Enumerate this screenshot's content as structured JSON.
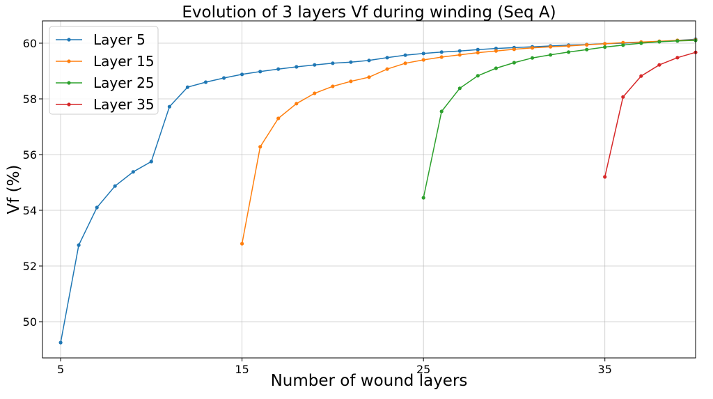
{
  "chart_data": {
    "type": "line",
    "title": "Evolution of 3 layers Vf during winding (Seq A)",
    "xlabel": "Number of wound layers",
    "ylabel": "Vf (%)",
    "xlim": [
      4,
      40
    ],
    "ylim": [
      48.7,
      60.8
    ],
    "xticks": [
      5,
      15,
      25,
      35
    ],
    "yticks": [
      50,
      52,
      54,
      56,
      58,
      60
    ],
    "grid": true,
    "legend_position": "top-left",
    "series": [
      {
        "name": "Layer 5",
        "color": "#1f77b4",
        "x": [
          5,
          6,
          7,
          8,
          9,
          10,
          11,
          12,
          13,
          14,
          15,
          16,
          17,
          18,
          19,
          20,
          21,
          22,
          23,
          24,
          25,
          26,
          27,
          28,
          29,
          30,
          31,
          32,
          33,
          34,
          35,
          36,
          37,
          38,
          39,
          40
        ],
        "y": [
          49.25,
          52.75,
          54.1,
          54.87,
          55.38,
          55.75,
          57.72,
          58.42,
          58.6,
          58.75,
          58.88,
          58.98,
          59.07,
          59.15,
          59.22,
          59.28,
          59.32,
          59.38,
          59.48,
          59.57,
          59.63,
          59.68,
          59.72,
          59.77,
          59.81,
          59.84,
          59.87,
          59.9,
          59.93,
          59.95,
          59.98,
          60.0,
          60.03,
          60.06,
          60.1,
          60.14
        ]
      },
      {
        "name": "Layer 15",
        "color": "#ff7f0e",
        "x": [
          15,
          16,
          17,
          18,
          19,
          20,
          21,
          22,
          23,
          24,
          25,
          26,
          27,
          28,
          29,
          30,
          31,
          32,
          33,
          34,
          35,
          36,
          37,
          38,
          39,
          40
        ],
        "y": [
          52.8,
          56.28,
          57.3,
          57.83,
          58.2,
          58.45,
          58.63,
          58.78,
          59.07,
          59.28,
          59.4,
          59.5,
          59.58,
          59.66,
          59.72,
          59.78,
          59.83,
          59.87,
          59.9,
          59.94,
          59.98,
          60.02,
          60.04,
          60.07,
          60.1,
          60.12
        ]
      },
      {
        "name": "Layer 25",
        "color": "#2ca02c",
        "x": [
          25,
          26,
          27,
          28,
          29,
          30,
          31,
          32,
          33,
          34,
          35,
          36,
          37,
          38,
          39,
          40
        ],
        "y": [
          54.45,
          57.55,
          58.38,
          58.83,
          59.1,
          59.3,
          59.47,
          59.58,
          59.68,
          59.77,
          59.86,
          59.93,
          60.0,
          60.05,
          60.08,
          60.1
        ]
      },
      {
        "name": "Layer 35",
        "color": "#d62728",
        "x": [
          35,
          36,
          37,
          38,
          39,
          40
        ],
        "y": [
          55.2,
          58.07,
          58.82,
          59.22,
          59.48,
          59.67
        ]
      }
    ]
  }
}
